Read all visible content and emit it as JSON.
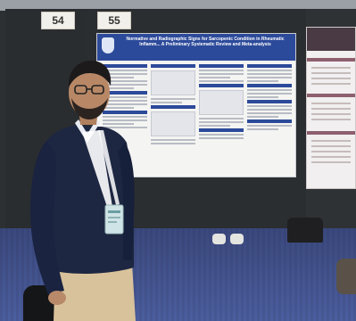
{
  "booth_numbers": {
    "left": "54",
    "right": "55"
  },
  "poster": {
    "title": "Normative and Radiographic Signs for Sarcopenic Condition in Rheumatic Inflamm... A Preliminary Systematic Review and Meta-analysis",
    "authors": ""
  },
  "colors": {
    "board": "#2a2d2f",
    "carpet": "#4d5fa0",
    "poster_header": "#2c4a9a",
    "sweater": "#1d2742",
    "pants": "#d9c39c",
    "lanyard": "#ffffff"
  }
}
